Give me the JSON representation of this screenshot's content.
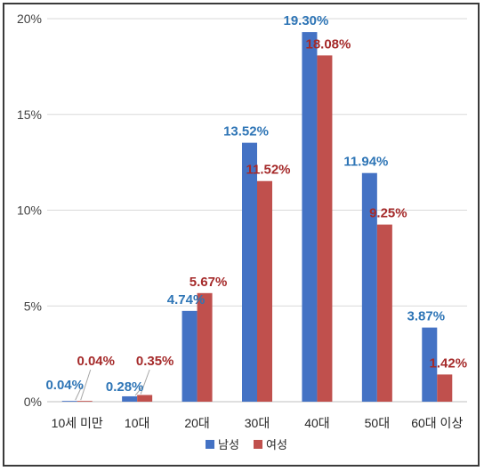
{
  "chart_data": {
    "type": "bar",
    "categories": [
      "10세 미만",
      "10대",
      "20대",
      "30대",
      "40대",
      "50대",
      "60대 이상"
    ],
    "series": [
      {
        "name": "남성",
        "color": "#4472C4",
        "label_color": "#2E75B6",
        "values": [
          0.04,
          0.28,
          4.74,
          13.52,
          19.3,
          11.94,
          3.87
        ],
        "labels": [
          "0.04%",
          "0.28%",
          "4.74%",
          "13.52%",
          "19.30%",
          "11.94%",
          "3.87%"
        ]
      },
      {
        "name": "여성",
        "color": "#C0504D",
        "label_color": "#A52A2A",
        "values": [
          0.04,
          0.35,
          5.67,
          11.52,
          18.08,
          9.25,
          1.42
        ],
        "labels": [
          "0.04%",
          "0.35%",
          "5.67%",
          "11.52%",
          "18.08%",
          "9.25%",
          "1.42%"
        ]
      }
    ],
    "yticks": [
      "0%",
      "5%",
      "10%",
      "15%",
      "20%"
    ],
    "ylim": [
      0,
      20
    ],
    "grid": true,
    "legend_position": "bottom",
    "title": "",
    "xlabel": "",
    "ylabel": ""
  }
}
